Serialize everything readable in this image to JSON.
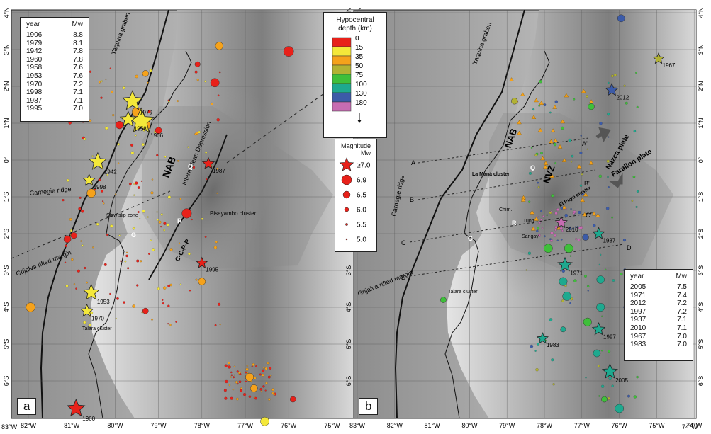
{
  "coordinates": {
    "left_panel": {
      "lon_ticks": [
        -82,
        -81,
        -80,
        -79,
        -78,
        -77,
        -76,
        -75
      ],
      "lat_ticks": [
        4,
        3,
        2,
        1,
        0,
        -1,
        -2,
        -3,
        -4,
        -5,
        -6
      ],
      "lon_labels": [
        "82°W",
        "81°W",
        "80°W",
        "79°W",
        "78°W",
        "77°W",
        "76°W",
        "75°W"
      ],
      "lat_labels": [
        "4°N",
        "3°N",
        "2°N",
        "1°N",
        "0°",
        "1°S",
        "2°S",
        "3°S",
        "4°S",
        "5°S",
        "6°S"
      ]
    },
    "right_panel": {
      "lon_ticks": [
        -83,
        -82,
        -81,
        -80,
        -79,
        -78,
        -77,
        -76,
        -75,
        -74
      ],
      "lat_ticks": [
        4,
        3,
        2,
        1,
        0,
        -1,
        -2,
        -3,
        -4,
        -5,
        -6
      ],
      "lon_labels": [
        "83°W",
        "82°W",
        "81°W",
        "80°W",
        "79°W",
        "78°W",
        "77°W",
        "76°W",
        "75°W",
        "74°W"
      ],
      "lat_labels": [
        "4°N",
        "3°N",
        "2°N",
        "1°N",
        "0°",
        "1°S",
        "2°S",
        "3°S",
        "4°S",
        "5°S",
        "6°S"
      ]
    },
    "corner_labels": [
      "83°W",
      "74°W"
    ]
  },
  "panels": {
    "a": {
      "label": "a"
    },
    "b": {
      "label": "b"
    }
  },
  "table_a": {
    "header": {
      "year": "year",
      "mw": "Mw"
    },
    "rows": [
      {
        "year": "1906",
        "mw": "8.8"
      },
      {
        "year": "1979",
        "mw": "8.1"
      },
      {
        "year": "1942",
        "mw": "7.8"
      },
      {
        "year": "1960",
        "mw": "7.8"
      },
      {
        "year": "1958",
        "mw": "7.6"
      },
      {
        "year": "1953",
        "mw": "7.6"
      },
      {
        "year": "1970",
        "mw": "7.2"
      },
      {
        "year": "1998",
        "mw": "7.1"
      },
      {
        "year": "1987",
        "mw": "7.1"
      },
      {
        "year": "1995",
        "mw": "7.0"
      }
    ]
  },
  "table_b": {
    "header": {
      "year": "year",
      "mw": "Mw"
    },
    "rows": [
      {
        "year": "2005",
        "mw": "7.5"
      },
      {
        "year": "1971",
        "mw": "7.4"
      },
      {
        "year": "2012",
        "mw": "7.2"
      },
      {
        "year": "1997",
        "mw": "7.2"
      },
      {
        "year": "1937",
        "mw": "7.1"
      },
      {
        "year": "2010",
        "mw": "7.1"
      },
      {
        "year": "1967",
        "mw": "7.0"
      },
      {
        "year": "1983",
        "mw": "7.0"
      }
    ]
  },
  "depth_legend": {
    "title": "Hypocentral depth (km)",
    "classes": [
      {
        "label": "0",
        "color": "#e8211a"
      },
      {
        "label": "15",
        "color": "#f4e83a"
      },
      {
        "label": "35",
        "color": "#f5a21b"
      },
      {
        "label": "50",
        "color": "#b2b233"
      },
      {
        "label": "75",
        "color": "#3fbf3a"
      },
      {
        "label": "100",
        "color": "#1ea98f"
      },
      {
        "label": "130",
        "color": "#3c5ba8"
      },
      {
        "label": "180",
        "color": "#c76cb2"
      }
    ]
  },
  "magnitude_legend": {
    "title": "Magnitude",
    "subtitle": "Mw",
    "entries": [
      "≥7.0",
      "6.9",
      "6.5",
      "6.0",
      "5.5",
      "5.0"
    ]
  },
  "labels_a": {
    "yaquina": "Yaquina graben",
    "carnegie": "Carnegie ridge",
    "grijalva": "Grijalva rifted margin",
    "slow_slip": "Slow slip zone",
    "talara": "Talara cluster",
    "nab": "NAB",
    "depression": "Interandean Depression",
    "pisayambo": "Pisayambo cluster",
    "ccpp": "C-C-P-P",
    "q": "Q",
    "r": "R",
    "g": "G"
  },
  "labels_b": {
    "yaquina": "Yaquina graben",
    "carnegie": "Carnegie ridge",
    "grijalva": "Grijalva rifted margin",
    "talara": "Talara cluster",
    "nab": "NAB",
    "nvz": "NVZ",
    "la_mana": "La Maná cluster",
    "el_puyo": "El Puyo cluster",
    "chimbo": "Chim.",
    "tungu": "Tung.",
    "sangay": "Sangay",
    "nazca": "Nazca plate",
    "farallon": "Farallon plate",
    "q": "Q",
    "r": "R",
    "g": "G",
    "profiles": [
      "A",
      "A'",
      "B",
      "B'",
      "C",
      "C'",
      "D",
      "D'"
    ]
  },
  "events_a": [
    {
      "year": "1906",
      "lon": -79.4,
      "lat": 1.05,
      "mw": 8.8,
      "color": "#f4e83a"
    },
    {
      "year": "1979",
      "lon": -79.6,
      "lat": 1.6,
      "mw": 8.1,
      "color": "#f4e83a"
    },
    {
      "year": "1958",
      "lon": -79.7,
      "lat": 1.1,
      "mw": 7.6,
      "color": "#f4e83a"
    },
    {
      "year": "1942",
      "lon": -80.4,
      "lat": -0.05,
      "mw": 7.8,
      "color": "#f4e83a"
    },
    {
      "year": "1998",
      "lon": -80.6,
      "lat": -0.55,
      "mw": 7.1,
      "color": "#f4e83a"
    },
    {
      "year": "1987",
      "lon": -77.85,
      "lat": -0.1,
      "mw": 7.1,
      "color": "#e8211a"
    },
    {
      "year": "1995",
      "lon": -78.0,
      "lat": -2.8,
      "mw": 7.0,
      "color": "#e8211a"
    },
    {
      "year": "1953",
      "lon": -80.55,
      "lat": -3.6,
      "mw": 7.6,
      "color": "#f4e83a"
    },
    {
      "year": "1970",
      "lon": -80.65,
      "lat": -4.1,
      "mw": 7.2,
      "color": "#f4e83a"
    },
    {
      "year": "1960",
      "lon": -80.9,
      "lat": -6.75,
      "mw": 7.8,
      "color": "#e8211a"
    }
  ],
  "events_b": [
    {
      "year": "1967",
      "lon": -74.95,
      "lat": 2.75,
      "mw": 7.0,
      "color": "#b2b233"
    },
    {
      "year": "2012",
      "lon": -76.2,
      "lat": 1.9,
      "mw": 7.2,
      "color": "#3c5ba8"
    },
    {
      "year": "2010",
      "lon": -77.55,
      "lat": -1.7,
      "mw": 7.1,
      "color": "#c76cb2"
    },
    {
      "year": "1937",
      "lon": -76.55,
      "lat": -2.0,
      "mw": 7.1,
      "color": "#1ea98f"
    },
    {
      "year": "1971",
      "lon": -77.45,
      "lat": -2.85,
      "mw": 7.4,
      "color": "#1ea98f"
    },
    {
      "year": "1997",
      "lon": -76.55,
      "lat": -4.6,
      "mw": 7.2,
      "color": "#1ea98f"
    },
    {
      "year": "1983",
      "lon": -78.05,
      "lat": -4.85,
      "mw": 7.0,
      "color": "#1ea98f"
    },
    {
      "year": "2005",
      "lon": -76.25,
      "lat": -5.75,
      "mw": 7.5,
      "color": "#1ea98f"
    }
  ],
  "circles_a": [
    {
      "lon": -76.0,
      "lat": 2.95,
      "mw": 6.8,
      "color": "#e8211a"
    },
    {
      "lon": -77.6,
      "lat": 3.1,
      "mw": 6.3,
      "color": "#f5a21b"
    },
    {
      "lon": -79.3,
      "lat": 0.95,
      "mw": 6.8,
      "color": "#f5a21b"
    },
    {
      "lon": -79.5,
      "lat": 1.3,
      "mw": 6.7,
      "color": "#f5a21b"
    },
    {
      "lon": -80.55,
      "lat": -0.9,
      "mw": 6.5,
      "color": "#f5a21b"
    },
    {
      "lon": -78.35,
      "lat": -1.45,
      "mw": 6.7,
      "color": "#e8211a"
    },
    {
      "lon": -79.9,
      "lat": 0.95,
      "mw": 6.3,
      "color": "#e8211a"
    },
    {
      "lon": -77.7,
      "lat": 2.1,
      "mw": 6.5,
      "color": "#e8211a"
    },
    {
      "lon": -81.95,
      "lat": -4.0,
      "mw": 6.6,
      "color": "#f5a21b"
    },
    {
      "lon": -78.0,
      "lat": -3.3,
      "mw": 6.2,
      "color": "#f5a21b"
    },
    {
      "lon": -76.9,
      "lat": -5.9,
      "mw": 6.4,
      "color": "#f5a21b"
    },
    {
      "lon": -76.8,
      "lat": -6.2,
      "mw": 6.2,
      "color": "#f5a21b"
    },
    {
      "lon": -76.55,
      "lat": -7.1,
      "mw": 6.5,
      "color": "#f4e83a"
    },
    {
      "lon": -79.3,
      "lat": -4.1,
      "mw": 5.9,
      "color": "#e8211a"
    },
    {
      "lon": -81.1,
      "lat": -2.15,
      "mw": 6.2,
      "color": "#e8211a"
    },
    {
      "lon": -80.95,
      "lat": -2.05,
      "mw": 6.0,
      "color": "#e8211a"
    },
    {
      "lon": -79.3,
      "lat": 2.35,
      "mw": 6.0,
      "color": "#f5a21b"
    },
    {
      "lon": -75.9,
      "lat": -6.5,
      "mw": 5.9,
      "color": "#e8211a"
    },
    {
      "lon": -78.1,
      "lat": 2.6,
      "mw": 5.8,
      "color": "#e8211a"
    },
    {
      "lon": -79.0,
      "lat": 0.8,
      "mw": 6.1,
      "color": "#e8211a"
    }
  ],
  "circles_b": [
    {
      "lon": -75.95,
      "lat": 3.85,
      "mw": 6.2,
      "color": "#3c5ba8"
    },
    {
      "lon": -78.8,
      "lat": 1.6,
      "mw": 6.0,
      "color": "#b2b233"
    },
    {
      "lon": -76.75,
      "lat": 1.45,
      "mw": 6.0,
      "color": "#3fbf3a"
    },
    {
      "lon": -77.35,
      "lat": -2.4,
      "mw": 6.5,
      "color": "#3fbf3a"
    },
    {
      "lon": -77.9,
      "lat": -2.4,
      "mw": 6.5,
      "color": "#3fbf3a"
    },
    {
      "lon": -76.5,
      "lat": -3.25,
      "mw": 6.3,
      "color": "#1ea98f"
    },
    {
      "lon": -77.5,
      "lat": -3.3,
      "mw": 6.4,
      "color": "#1ea98f"
    },
    {
      "lon": -77.4,
      "lat": -3.7,
      "mw": 6.5,
      "color": "#1ea98f"
    },
    {
      "lon": -76.85,
      "lat": -4.4,
      "mw": 6.4,
      "color": "#3fbf3a"
    },
    {
      "lon": -76.5,
      "lat": -4.0,
      "mw": 6.4,
      "color": "#1ea98f"
    },
    {
      "lon": -76.6,
      "lat": -5.25,
      "mw": 6.2,
      "color": "#1ea98f"
    },
    {
      "lon": -76.0,
      "lat": -6.75,
      "mw": 6.5,
      "color": "#1ea98f"
    },
    {
      "lon": -76.9,
      "lat": -2.1,
      "mw": 6.0,
      "color": "#3c5ba8"
    },
    {
      "lon": -76.4,
      "lat": -6.5,
      "mw": 5.9,
      "color": "#3fbf3a"
    },
    {
      "lon": -80.7,
      "lat": -3.8,
      "mw": 5.9,
      "color": "#3fbf3a"
    },
    {
      "lon": -77.5,
      "lat": -4.6,
      "mw": 5.8,
      "color": "#1ea98f"
    }
  ],
  "colors": {
    "ocean": "#9c9c9c",
    "land_low": "#f2f2f2",
    "land_high": "#6a6a6a",
    "grid": "#555555",
    "star_edge": "#222222"
  }
}
